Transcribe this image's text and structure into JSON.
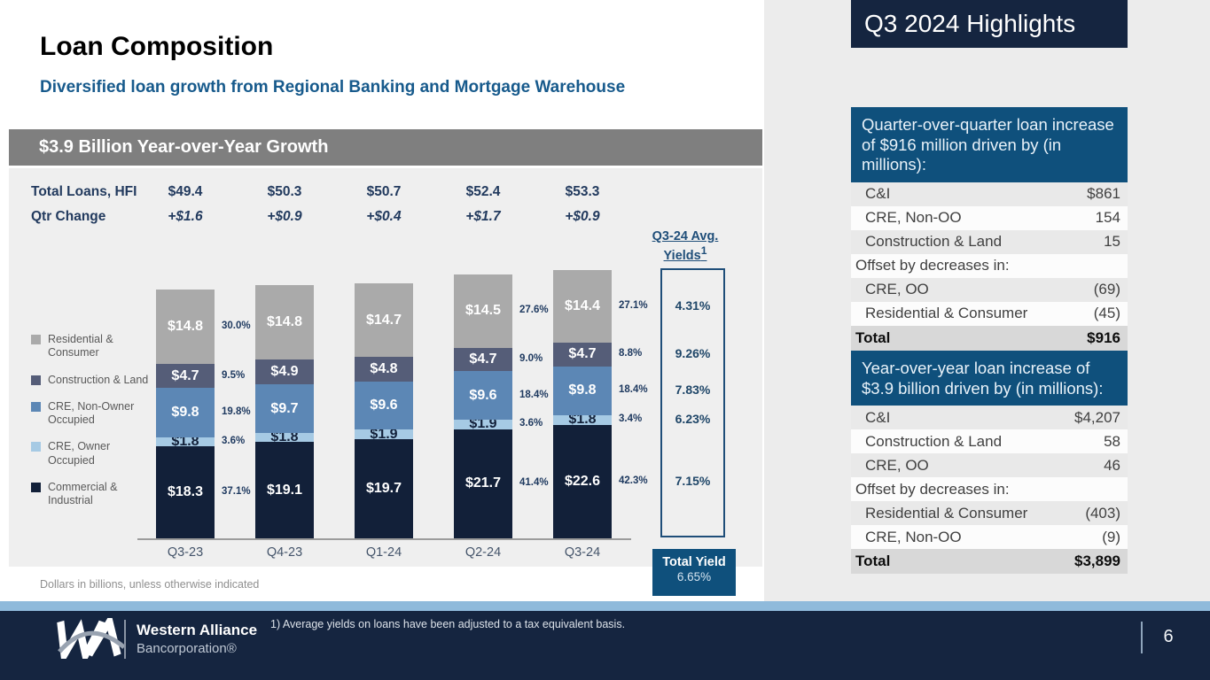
{
  "slide": {
    "title": "Loan Composition",
    "subtitle": "Diversified loan growth from Regional Banking and Mortgage Warehouse",
    "footnote_left": "Dollars in billions, unless otherwise indicated"
  },
  "chart_data": {
    "type": "stacked-bar",
    "title": "$3.9 Billion Year-over-Year Growth",
    "unit": "USD billions",
    "categories": [
      "Q3-23",
      "Q4-23",
      "Q1-24",
      "Q2-24",
      "Q3-24"
    ],
    "totals_label": "Total Loans, HFI",
    "qtr_change_label": "Qtr Change",
    "totals": [
      "$49.4",
      "$50.3",
      "$50.7",
      "$52.4",
      "$53.3"
    ],
    "qtr_changes": [
      "+$1.6",
      "+$0.9",
      "+$0.4",
      "+$1.7",
      "+$0.9"
    ],
    "series_bottom_up": [
      {
        "name": "Commercial & Industrial",
        "color": "#122039",
        "label_color": "#FFFFFF",
        "values": [
          18.3,
          19.1,
          19.7,
          21.7,
          22.6
        ],
        "pct": [
          "37.1%",
          null,
          null,
          "41.4%",
          "42.3%"
        ]
      },
      {
        "name": "CRE, Owner Occupied",
        "color": "#A6CAE4",
        "label_color": "#122039",
        "values": [
          1.8,
          1.8,
          1.9,
          1.9,
          1.8
        ],
        "pct": [
          "3.6%",
          null,
          null,
          "3.6%",
          "3.4%"
        ]
      },
      {
        "name": "CRE, Non-Owner Occupied",
        "color": "#5C87B5",
        "label_color": "#FFFFFF",
        "values": [
          9.8,
          9.7,
          9.6,
          9.6,
          9.8
        ],
        "pct": [
          "19.8%",
          null,
          null,
          "18.4%",
          "18.4%"
        ]
      },
      {
        "name": "Construction & Land",
        "color": "#555D78",
        "label_color": "#FFFFFF",
        "values": [
          4.7,
          4.9,
          4.8,
          4.7,
          4.7
        ],
        "pct": [
          "9.5%",
          null,
          null,
          "9.0%",
          "8.8%"
        ]
      },
      {
        "name": "Residential & Consumer",
        "color": "#AAAAAA",
        "label_color": "#FFFFFF",
        "values": [
          14.8,
          14.8,
          14.7,
          14.5,
          14.4
        ],
        "pct": [
          "30.0%",
          null,
          null,
          "27.6%",
          "27.1%"
        ]
      }
    ],
    "legend_top_down": [
      {
        "label": "Residential & Consumer",
        "color": "#AAAAAA"
      },
      {
        "label": "Construction & Land",
        "color": "#555D78"
      },
      {
        "label": "CRE, Non-Owner Occupied",
        "color": "#5C87B5"
      },
      {
        "label": "CRE, Owner Occupied",
        "color": "#A6CAE4"
      },
      {
        "label": "Commercial & Industrial",
        "color": "#122039"
      }
    ],
    "yields": {
      "header_line1": "Q3-24 Avg.",
      "header_line2": "Yields",
      "superscript": "1",
      "values_top_down": [
        "4.31%",
        "9.26%",
        "7.83%",
        "6.23%",
        "7.15%"
      ],
      "total_label": "Total Yield",
      "total_value": "6.65%"
    }
  },
  "highlights": {
    "header": "Q3 2024 Highlights",
    "tables": [
      {
        "title": "Quarter-over-quarter loan increase of $916 million driven by (in millions):",
        "rows": [
          {
            "label": "C&I",
            "value": "$861",
            "indent": true
          },
          {
            "label": "CRE, Non-OO",
            "value": "154",
            "indent": true
          },
          {
            "label": "Construction & Land",
            "value": "15",
            "indent": true
          },
          {
            "label": "Offset by decreases in:",
            "value": "",
            "indent": false
          },
          {
            "label": "CRE, OO",
            "value": "(69)",
            "indent": true
          },
          {
            "label": "Residential & Consumer",
            "value": "(45)",
            "indent": true
          }
        ],
        "total": {
          "label": "Total",
          "value": "$916"
        }
      },
      {
        "title": "Year-over-year loan increase of $3.9 billion driven by (in millions):",
        "rows": [
          {
            "label": "C&I",
            "value": "$4,207",
            "indent": true
          },
          {
            "label": "Construction & Land",
            "value": "58",
            "indent": true
          },
          {
            "label": "CRE, OO",
            "value": "46",
            "indent": true
          },
          {
            "label": "Offset by decreases in:",
            "value": "",
            "indent": false
          },
          {
            "label": "Residential & Consumer",
            "value": "(403)",
            "indent": true
          },
          {
            "label": "CRE, Non-OO",
            "value": "(9)",
            "indent": true
          }
        ],
        "total": {
          "label": "Total",
          "value": "$3,899"
        }
      }
    ]
  },
  "footer": {
    "brand_line1": "Western Alliance",
    "brand_line2": "Bancorporation®",
    "footnote": "1)  Average yields on loans have been adjusted to a tax equivalent basis.",
    "page_number": "6"
  }
}
